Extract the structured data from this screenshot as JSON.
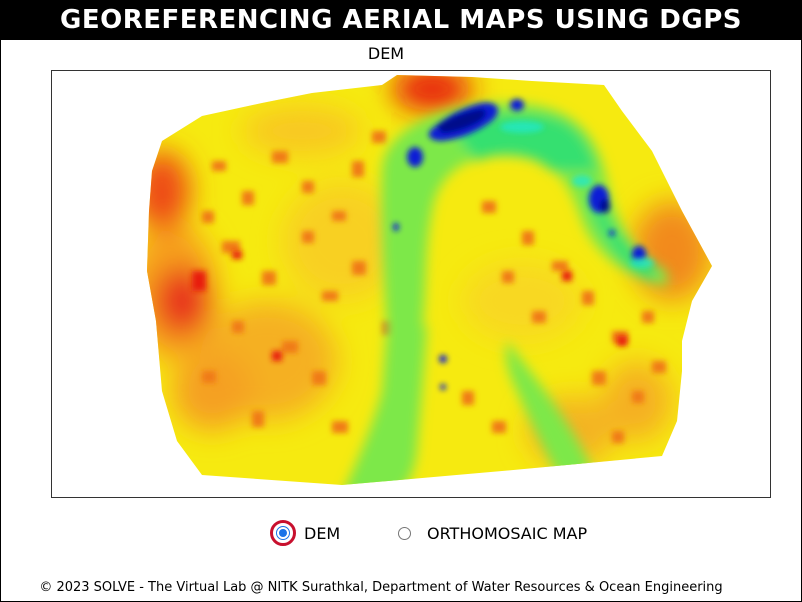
{
  "header": {
    "title": "GEOREFERENCING AERIAL MAPS USING DGPS"
  },
  "map": {
    "title": "DEM",
    "colors": {
      "high": "#e81c0e",
      "mid_high": "#f7a21c",
      "mid": "#f6ea10",
      "low_mid": "#7de84a",
      "low": "#29e86c",
      "deep": "#0a1fd6",
      "deepest": "#000a8a"
    }
  },
  "view_options": {
    "dem_label": "DEM",
    "ortho_label": "ORTHOMOSAIC MAP",
    "selected": "DEM"
  },
  "footer": {
    "text": "© 2023 SOLVE - The Virtual Lab @ NITK Surathkal, Department of Water Resources & Ocean Engineering"
  }
}
